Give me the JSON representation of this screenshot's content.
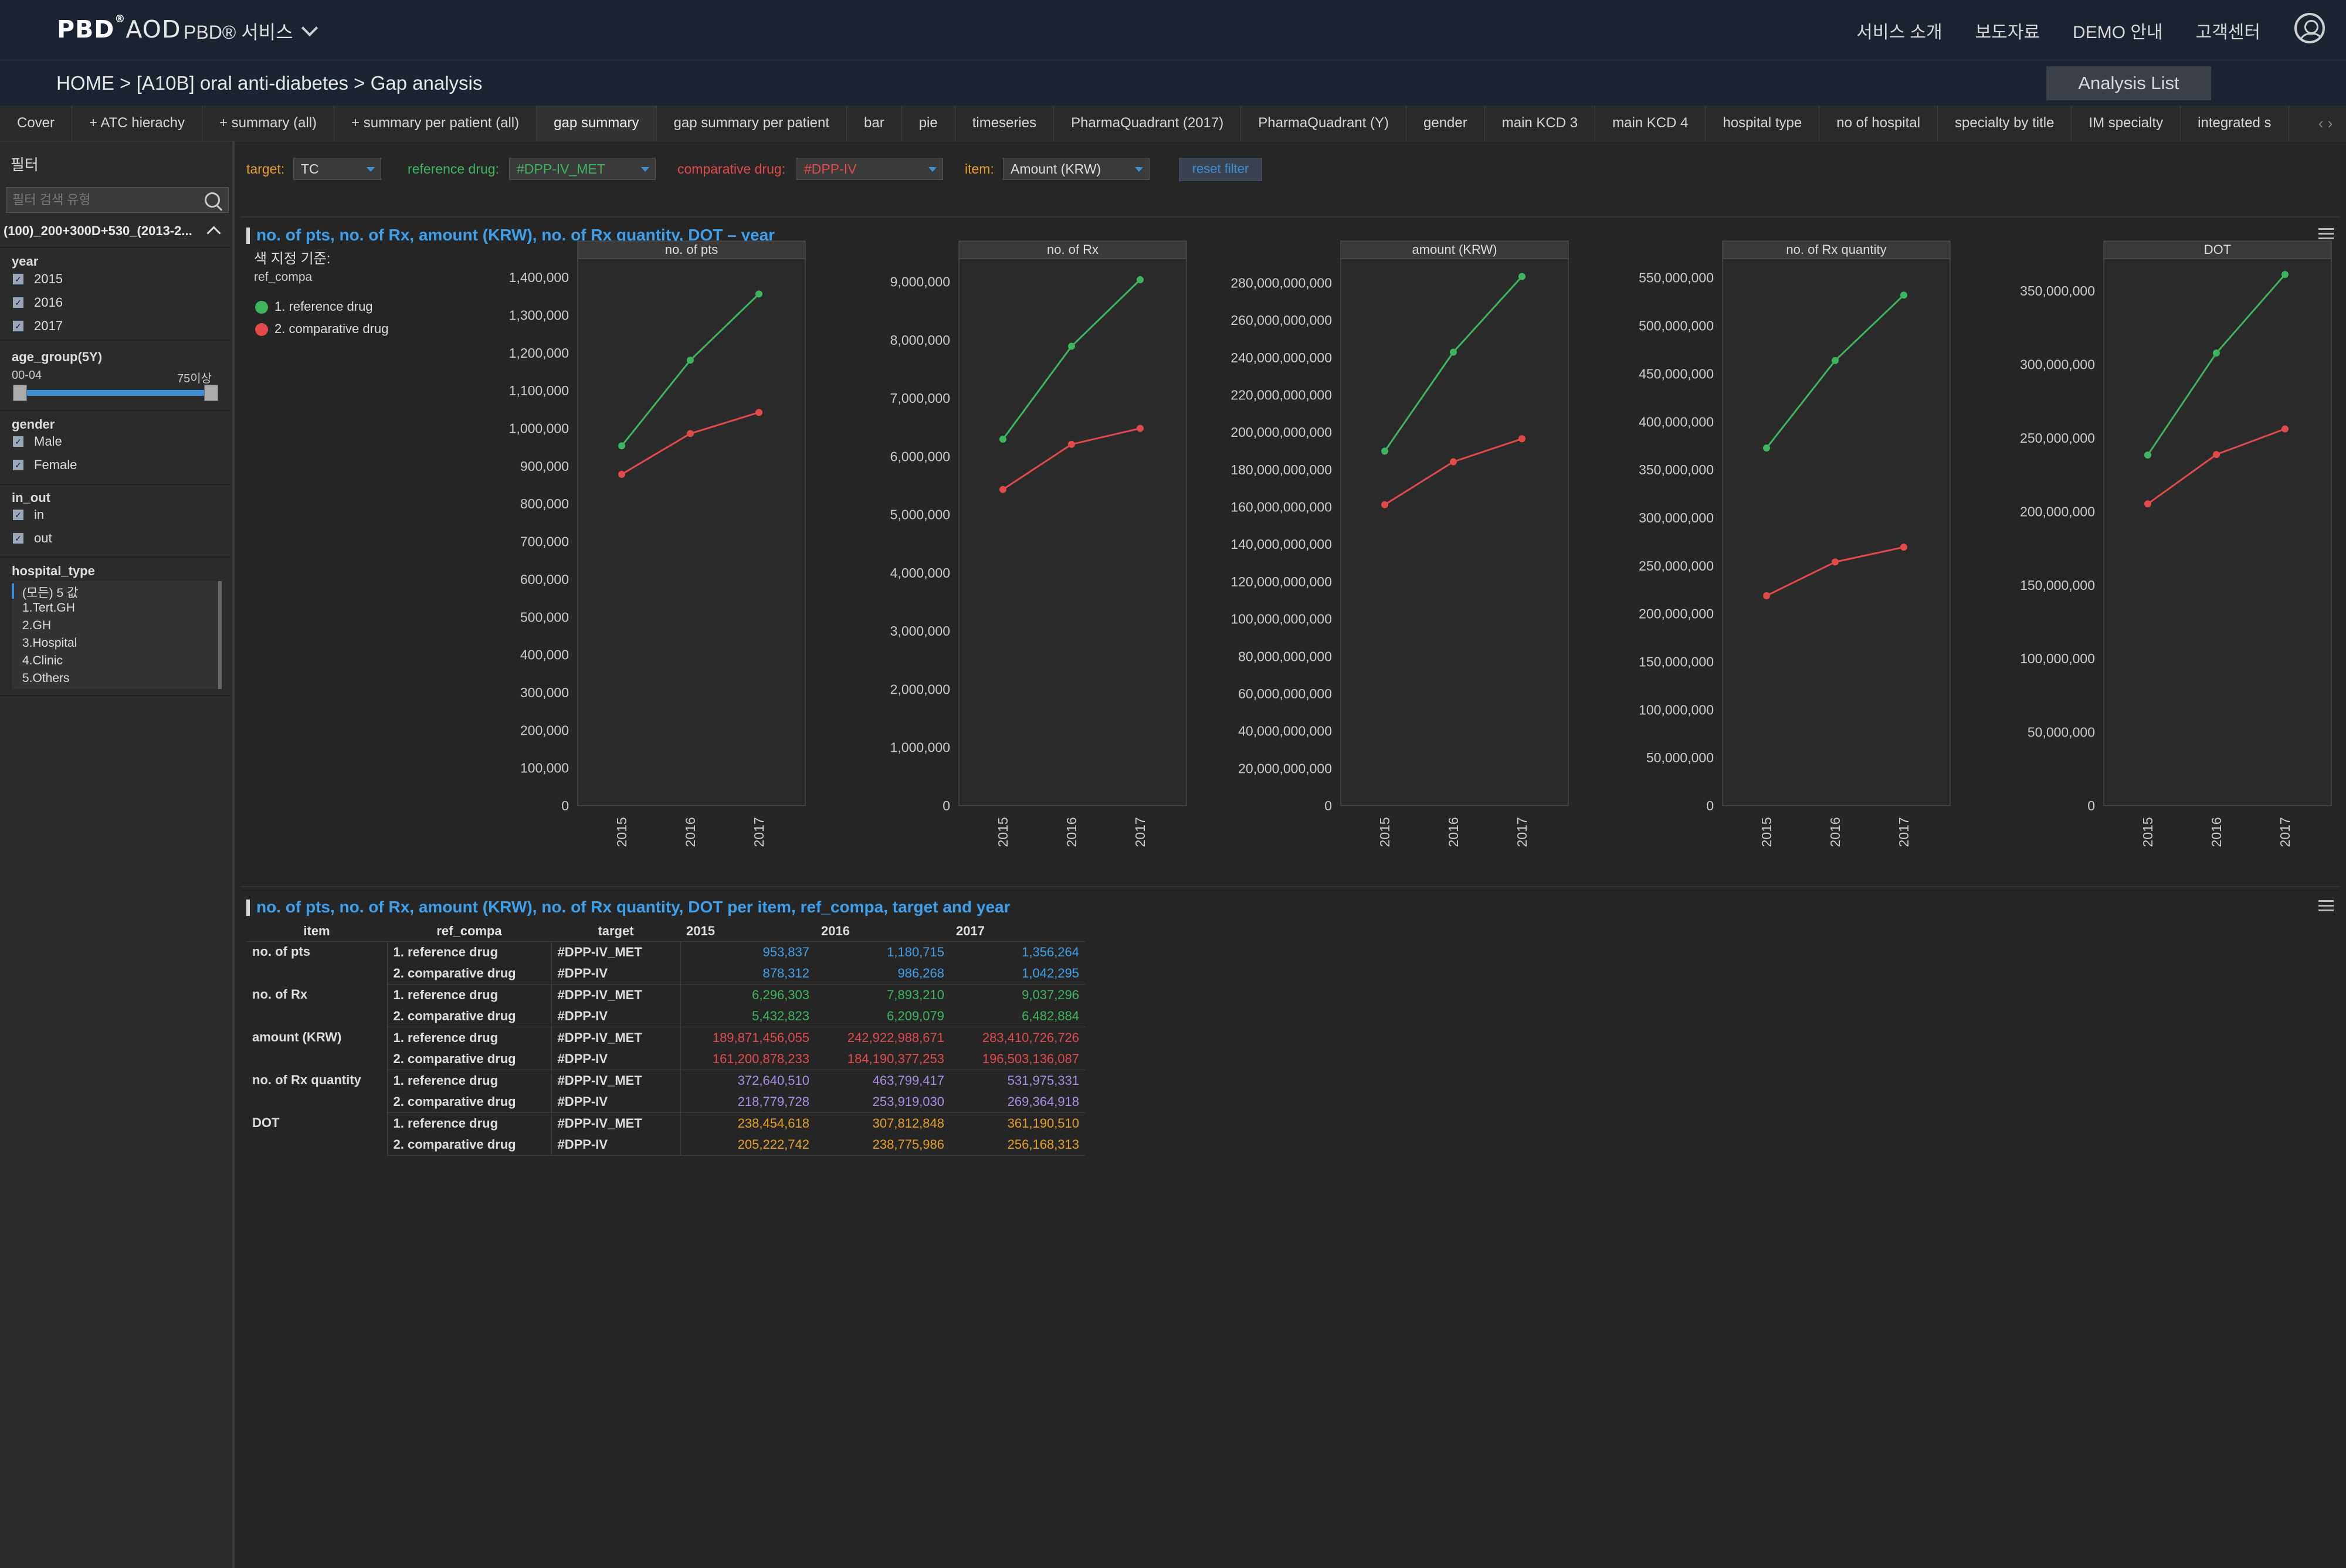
{
  "topnav": {
    "logo": "PBD",
    "logo_sup": "®",
    "logo_suffix": "AOD",
    "service_menu": "PBD® 서비스",
    "menu": [
      "서비스 소개",
      "보도자료",
      "DEMO 안내",
      "고객센터"
    ]
  },
  "breadcrumb": "HOME >  [A10B] oral anti-diabetes > Gap analysis",
  "analysis_list_label": "Analysis List",
  "tabs": [
    "Cover",
    "+ ATC hierachy",
    "+ summary (all)",
    "+ summary per patient (all)",
    "gap summary",
    "gap summary per patient",
    "bar",
    "pie",
    "timeseries",
    "PharmaQuadrant (2017)",
    "PharmaQuadrant (Y)",
    "gender",
    "main KCD 3",
    "main KCD 4",
    "hospital type",
    "no of hospital",
    "specialty by title",
    "IM specialty",
    "integrated s"
  ],
  "active_tab_index": 4,
  "sidebar": {
    "title": "필터",
    "search_placeholder": "필터 검색 유형",
    "path_label": "(100)_200+300D+530_(2013-2...",
    "year": {
      "title": "year",
      "options": [
        "2015",
        "2016",
        "2017"
      ]
    },
    "age_group": {
      "title": "age_group(5Y)",
      "min_label": "00-04",
      "max_label": "75이상"
    },
    "gender": {
      "title": "gender",
      "options": [
        "Male",
        "Female"
      ]
    },
    "in_out": {
      "title": "in_out",
      "options": [
        "in",
        "out"
      ]
    },
    "hospital_type": {
      "title": "hospital_type",
      "options": [
        "(모든) 5 값",
        "1.Tert.GH",
        "2.GH",
        "3.Hospital",
        "4.Clinic",
        "5.Others"
      ]
    }
  },
  "filterbar": {
    "target_label": "target:",
    "target_value": "TC",
    "reference_label": "reference drug:",
    "reference_value": "#DPP-IV_MET",
    "comparative_label": "comparative drug:",
    "comparative_value": "#DPP-IV",
    "item_label": "item:",
    "item_value": "Amount (KRW)",
    "reset_label": "reset filter"
  },
  "colors": {
    "reference": "#3cb55e",
    "comparative": "#e04a4a",
    "accent": "#3ea0ea",
    "filter_label": "#e89c2a"
  },
  "chart_panel": {
    "title": "no. of pts, no. of Rx, amount (KRW), no. of Rx quantity, DOT – year",
    "legend_title": "색 지정 기준:",
    "legend_sub": "ref_compa",
    "legend_items": [
      "1. reference drug",
      "2. comparative drug"
    ]
  },
  "chart_data": [
    {
      "type": "line",
      "title": "no. of pts",
      "x": [
        "2015",
        "2016",
        "2017"
      ],
      "ylim": [
        0,
        1450000
      ],
      "yticks": [
        0,
        100000,
        200000,
        300000,
        400000,
        500000,
        600000,
        700000,
        800000,
        900000,
        1000000,
        1100000,
        1200000,
        1300000,
        1400000
      ],
      "ytick_labels": [
        "0",
        "100,000",
        "200,000",
        "300,000",
        "400,000",
        "500,000",
        "600,000",
        "700,000",
        "800,000",
        "900,000",
        "1,000,000",
        "1,100,000",
        "1,200,000",
        "1,300,000",
        "1,400,000"
      ],
      "series": [
        {
          "name": "1. reference drug",
          "values": [
            953837,
            1180715,
            1356264
          ]
        },
        {
          "name": "2. comparative drug",
          "values": [
            878312,
            986268,
            1042295
          ]
        }
      ]
    },
    {
      "type": "line",
      "title": "no. of Rx",
      "x": [
        "2015",
        "2016",
        "2017"
      ],
      "ylim": [
        0,
        9400000
      ],
      "yticks": [
        0,
        1000000,
        2000000,
        3000000,
        4000000,
        5000000,
        6000000,
        7000000,
        8000000,
        9000000
      ],
      "ytick_labels": [
        "0",
        "1,000,000",
        "2,000,000",
        "3,000,000",
        "4,000,000",
        "5,000,000",
        "6,000,000",
        "7,000,000",
        "8,000,000",
        "9,000,000"
      ],
      "series": [
        {
          "name": "1. reference drug",
          "values": [
            6296303,
            7893210,
            9037296
          ]
        },
        {
          "name": "2. comparative drug",
          "values": [
            5432823,
            6209079,
            6482884
          ]
        }
      ]
    },
    {
      "type": "line",
      "title": "amount (KRW)",
      "x": [
        "2015",
        "2016",
        "2017"
      ],
      "ylim": [
        0,
        293000000000
      ],
      "yticks": [
        0,
        20000000000,
        40000000000,
        60000000000,
        80000000000,
        100000000000,
        120000000000,
        140000000000,
        160000000000,
        180000000000,
        200000000000,
        220000000000,
        240000000000,
        260000000000,
        280000000000
      ],
      "ytick_labels": [
        "0",
        "20,000,000,000",
        "40,000,000,000",
        "60,000,000,000",
        "80,000,000,000",
        "100,000,000,000",
        "120,000,000,000",
        "140,000,000,000",
        "160,000,000,000",
        "180,000,000,000",
        "200,000,000,000",
        "220,000,000,000",
        "240,000,000,000",
        "260,000,000,000",
        "280,000,000,000"
      ],
      "series": [
        {
          "name": "1. reference drug",
          "values": [
            189871456055,
            242922988671,
            283410726726
          ]
        },
        {
          "name": "2. comparative drug",
          "values": [
            161200878233,
            184190377253,
            196503136087
          ]
        }
      ]
    },
    {
      "type": "line",
      "title": "no. of Rx quantity",
      "x": [
        "2015",
        "2016",
        "2017"
      ],
      "ylim": [
        0,
        570000000
      ],
      "yticks": [
        0,
        50000000,
        100000000,
        150000000,
        200000000,
        250000000,
        300000000,
        350000000,
        400000000,
        450000000,
        500000000,
        550000000
      ],
      "ytick_labels": [
        "0",
        "50,000,000",
        "100,000,000",
        "150,000,000",
        "200,000,000",
        "250,000,000",
        "300,000,000",
        "350,000,000",
        "400,000,000",
        "450,000,000",
        "500,000,000",
        "550,000,000"
      ],
      "series": [
        {
          "name": "1. reference drug",
          "values": [
            372640510,
            463799417,
            531975331
          ]
        },
        {
          "name": "2. comparative drug",
          "values": [
            218779728,
            253919030,
            269364918
          ]
        }
      ]
    },
    {
      "type": "line",
      "title": "DOT",
      "x": [
        "2015",
        "2016",
        "2017"
      ],
      "ylim": [
        0,
        372000000
      ],
      "yticks": [
        0,
        50000000,
        100000000,
        150000000,
        200000000,
        250000000,
        300000000,
        350000000
      ],
      "ytick_labels": [
        "0",
        "50,000,000",
        "100,000,000",
        "150,000,000",
        "200,000,000",
        "250,000,000",
        "300,000,000",
        "350,000,000"
      ],
      "series": [
        {
          "name": "1. reference drug",
          "values": [
            238454618,
            307812848,
            361190510
          ]
        },
        {
          "name": "2. comparative drug",
          "values": [
            205222742,
            238775986,
            256168313
          ]
        }
      ]
    }
  ],
  "table_panel": {
    "title": "no. of pts, no. of Rx, amount (KRW), no. of Rx quantity, DOT per item, ref_compa, target and year",
    "headers": [
      "item",
      "ref_compa",
      "target",
      "2015",
      "2016",
      "2017"
    ],
    "groups": [
      {
        "item": "no. of pts",
        "color": "#3ea0ea",
        "rows": [
          {
            "ref": "1. reference drug",
            "target": "#DPP-IV_MET",
            "values": [
              "953,837",
              "1,180,715",
              "1,356,264"
            ]
          },
          {
            "ref": "2. comparative drug",
            "target": "#DPP-IV",
            "values": [
              "878,312",
              "986,268",
              "1,042,295"
            ]
          }
        ]
      },
      {
        "item": "no. of Rx",
        "color": "#3cb55e",
        "rows": [
          {
            "ref": "1. reference drug",
            "target": "#DPP-IV_MET",
            "values": [
              "6,296,303",
              "7,893,210",
              "9,037,296"
            ]
          },
          {
            "ref": "2. comparative drug",
            "target": "#DPP-IV",
            "values": [
              "5,432,823",
              "6,209,079",
              "6,482,884"
            ]
          }
        ]
      },
      {
        "item": "amount (KRW)",
        "color": "#e04a4a",
        "rows": [
          {
            "ref": "1. reference drug",
            "target": "#DPP-IV_MET",
            "values": [
              "189,871,456,055",
              "242,922,988,671",
              "283,410,726,726"
            ]
          },
          {
            "ref": "2. comparative drug",
            "target": "#DPP-IV",
            "values": [
              "161,200,878,233",
              "184,190,377,253",
              "196,503,136,087"
            ]
          }
        ]
      },
      {
        "item": "no. of Rx quantity",
        "color": "#a98fe6",
        "rows": [
          {
            "ref": "1. reference drug",
            "target": "#DPP-IV_MET",
            "values": [
              "372,640,510",
              "463,799,417",
              "531,975,331"
            ]
          },
          {
            "ref": "2. comparative drug",
            "target": "#DPP-IV",
            "values": [
              "218,779,728",
              "253,919,030",
              "269,364,918"
            ]
          }
        ]
      },
      {
        "item": "DOT",
        "color": "#e8a020",
        "rows": [
          {
            "ref": "1. reference drug",
            "target": "#DPP-IV_MET",
            "values": [
              "238,454,618",
              "307,812,848",
              "361,190,510"
            ]
          },
          {
            "ref": "2. comparative drug",
            "target": "#DPP-IV",
            "values": [
              "205,222,742",
              "238,775,986",
              "256,168,313"
            ]
          }
        ]
      }
    ]
  }
}
